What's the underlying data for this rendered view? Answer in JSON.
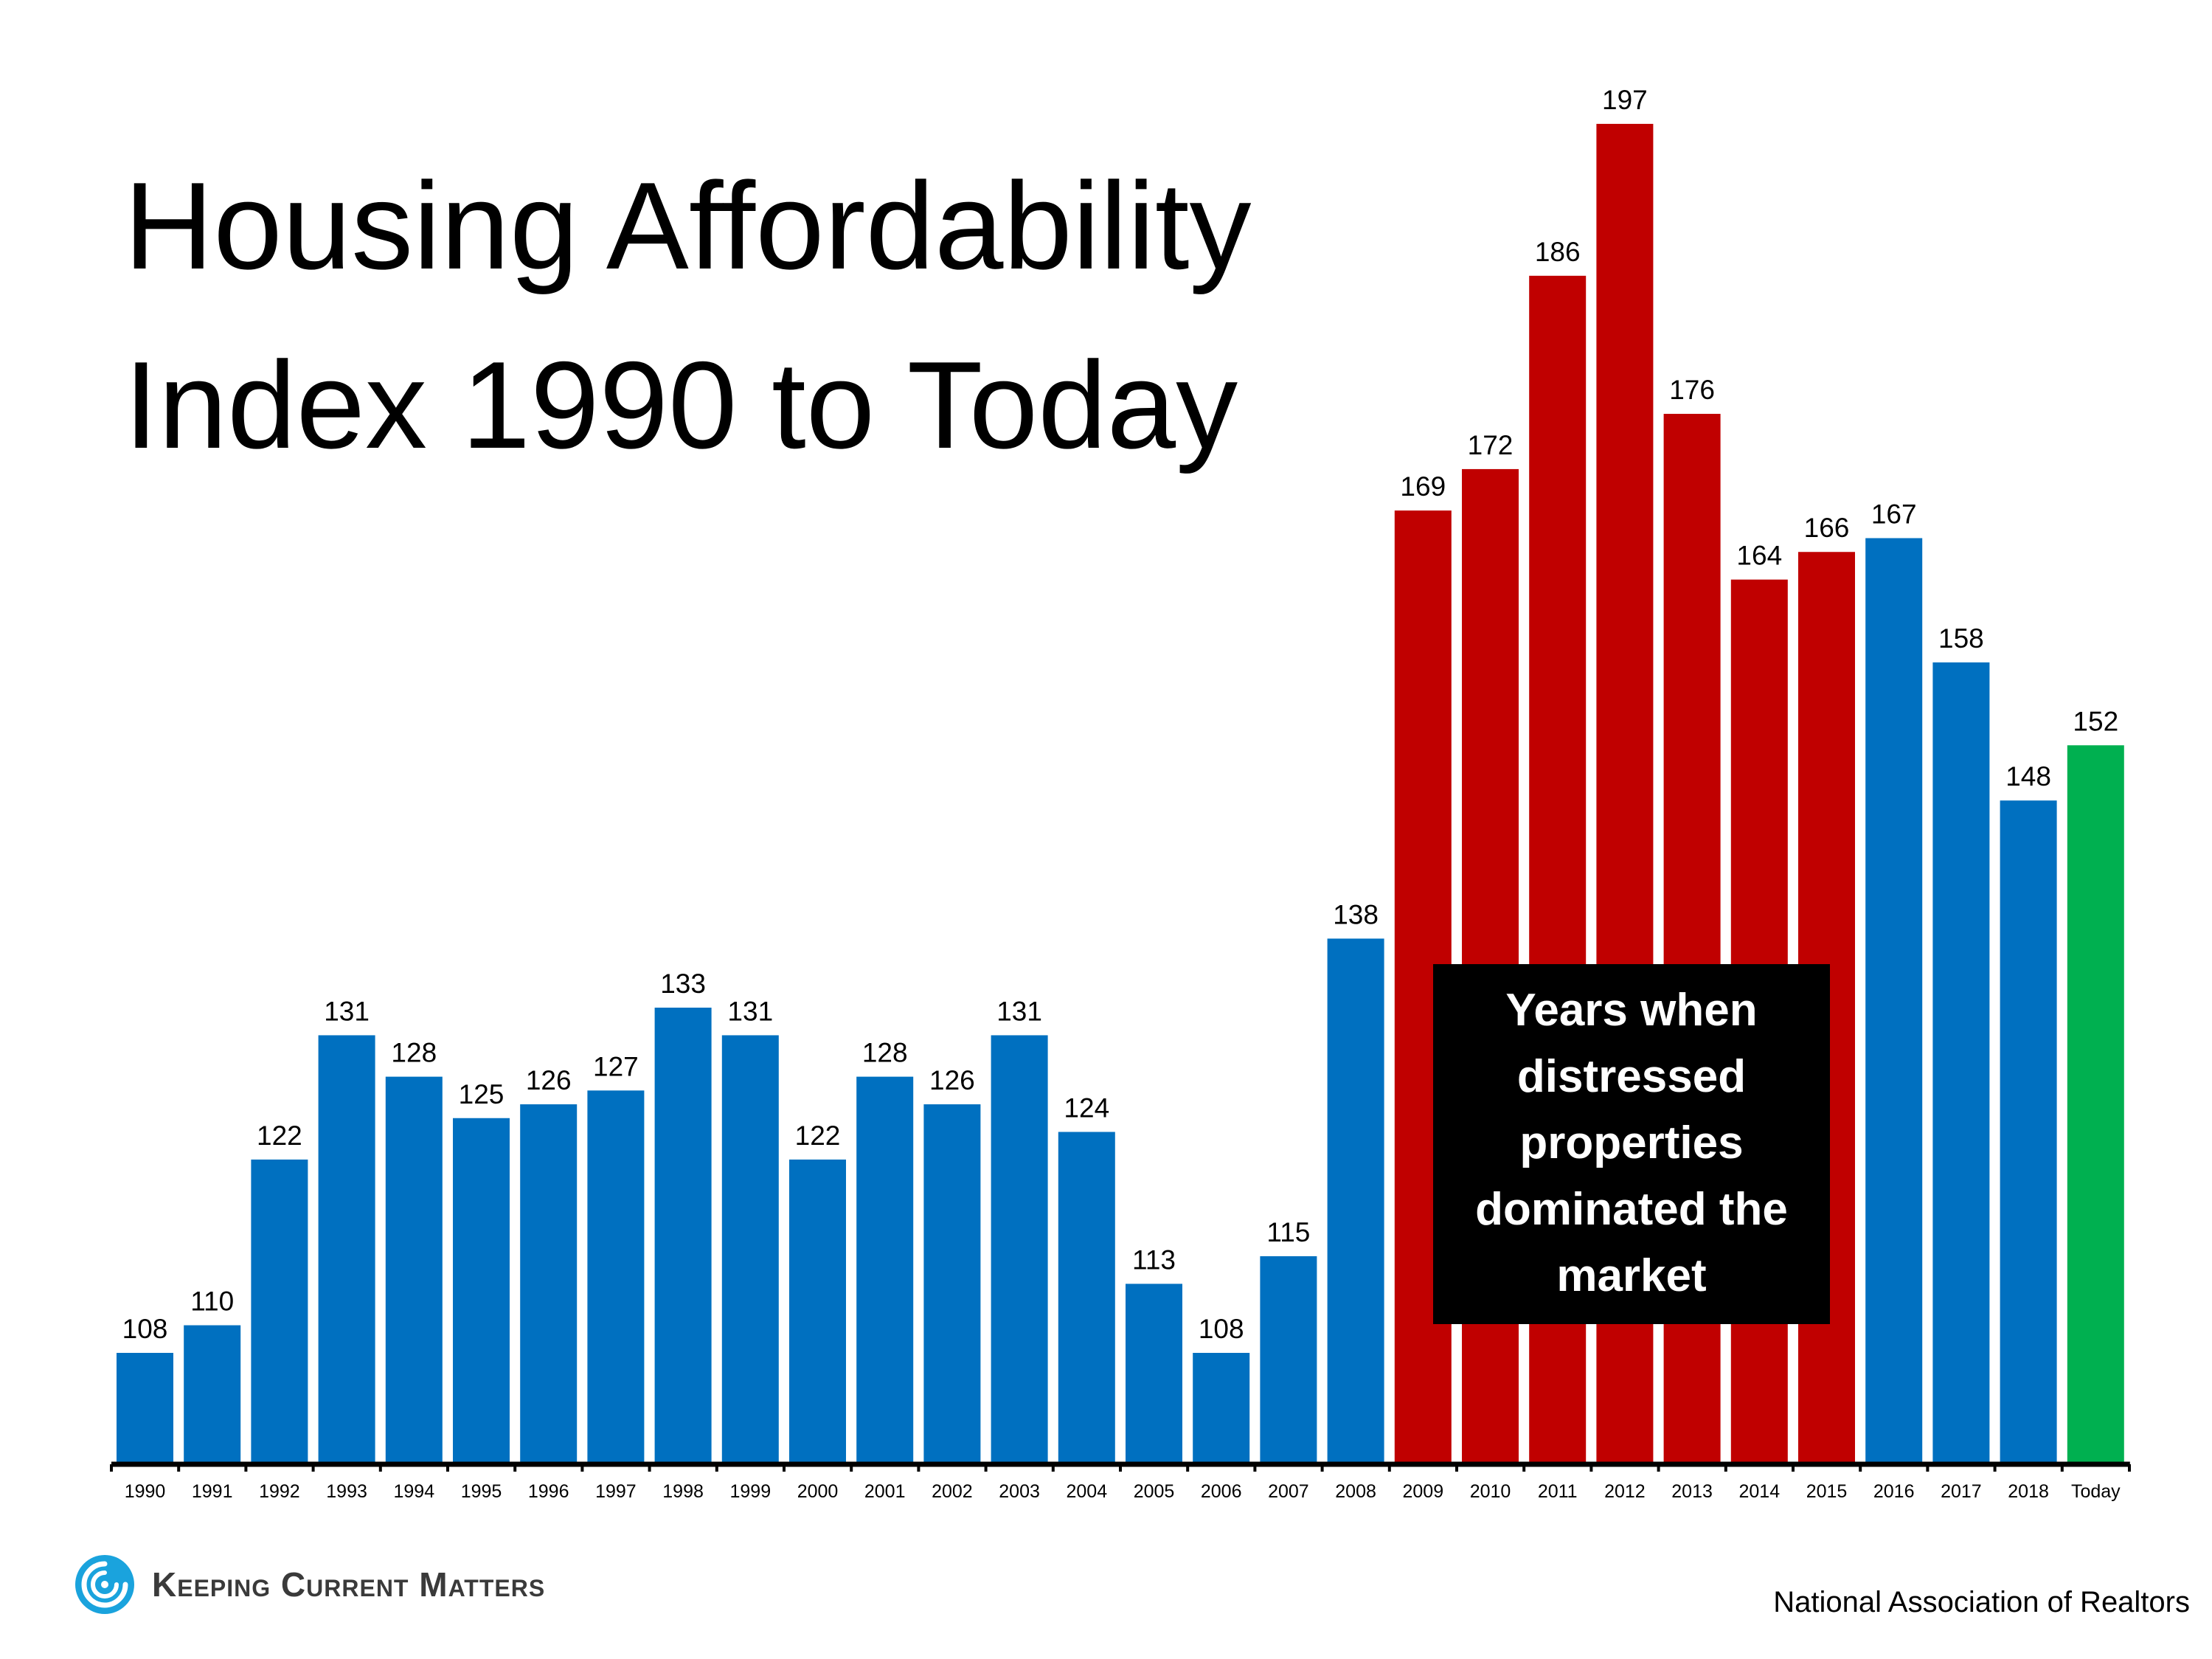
{
  "title": {
    "line1": "Housing Affordability",
    "line2": "Index 1990 to Today"
  },
  "callout": {
    "lines": [
      "Years when",
      "distressed",
      "properties",
      "dominated the",
      "market"
    ]
  },
  "logo": {
    "text": "Keeping Current Matters",
    "icon": "swirl-logo-icon",
    "color": "#1aa3dd"
  },
  "source": "National Association of Realtors",
  "colors": {
    "normal": "#0070c0",
    "distressed": "#c00000",
    "today": "#00b050",
    "axis": "#000000"
  },
  "chart_data": {
    "type": "bar",
    "title": "Housing Affordability Index 1990 to Today",
    "xlabel": "",
    "ylabel": "",
    "ylim": [
      90,
      200
    ],
    "grid": false,
    "categories": [
      "1990",
      "1991",
      "1992",
      "1993",
      "1994",
      "1995",
      "1996",
      "1997",
      "1998",
      "1999",
      "2000",
      "2001",
      "2002",
      "2003",
      "2004",
      "2005",
      "2006",
      "2007",
      "2008",
      "2009",
      "2010",
      "2011",
      "2012",
      "2013",
      "2014",
      "2015",
      "2016",
      "2017",
      "2018",
      "Today"
    ],
    "values": [
      108,
      110,
      122,
      131,
      128,
      125,
      126,
      127,
      133,
      131,
      122,
      128,
      126,
      131,
      124,
      113,
      108,
      115,
      138,
      169,
      172,
      186,
      197,
      176,
      164,
      166,
      167,
      158,
      148,
      152
    ],
    "bar_groups": [
      "normal",
      "normal",
      "normal",
      "normal",
      "normal",
      "normal",
      "normal",
      "normal",
      "normal",
      "normal",
      "normal",
      "normal",
      "normal",
      "normal",
      "normal",
      "normal",
      "normal",
      "normal",
      "normal",
      "distressed",
      "distressed",
      "distressed",
      "distressed",
      "distressed",
      "distressed",
      "distressed",
      "normal",
      "normal",
      "normal",
      "today"
    ]
  }
}
